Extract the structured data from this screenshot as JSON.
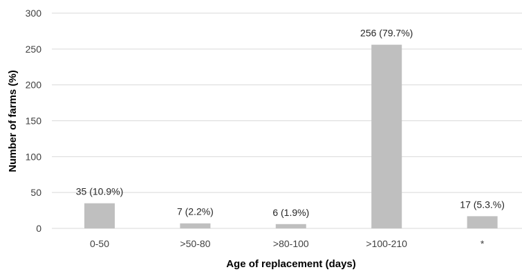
{
  "chart_data": {
    "type": "bar",
    "categories": [
      "0-50",
      ">50-80",
      ">80-100",
      ">100-210",
      "*"
    ],
    "values": [
      35,
      7,
      6,
      256,
      17
    ],
    "data_labels": [
      "35 (10.9%)",
      "7 (2.2%)",
      "6 (1.9%)",
      "256 (79.7%)",
      "17 (5.3.%)"
    ],
    "xlabel": "Age of replacement (days)",
    "ylabel": "Number of farms (%)",
    "ylim": [
      0,
      300
    ],
    "yticks": [
      "0",
      "50",
      "100",
      "150",
      "200",
      "250",
      "300"
    ],
    "grid": true,
    "bar_color": "#bfbfbf",
    "grid_color": "#d9d9d9"
  }
}
